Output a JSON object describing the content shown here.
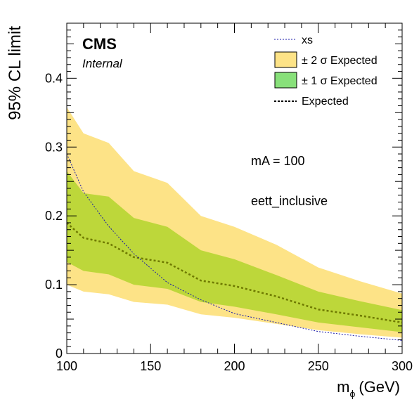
{
  "chart_data": {
    "type": "line",
    "ylabel": "95% CL limit",
    "xlabel_main": "m",
    "xlabel_sub": "ϕ",
    "xlabel_unit": "(GeV)",
    "xlim": [
      100,
      300
    ],
    "ylim": [
      0,
      0.48
    ],
    "x_ticks": [
      100,
      150,
      200,
      250,
      300
    ],
    "x_tick_labels": [
      "100",
      "150",
      "200",
      "250",
      "300"
    ],
    "y_ticks": [
      0,
      0.1,
      0.2,
      0.3,
      0.4
    ],
    "y_tick_labels": [
      "0",
      "0.1",
      "0.2",
      "0.3",
      "0.4"
    ],
    "label_cms": "CMS",
    "label_internal": "Internal",
    "annotation_mass": "mA = 100",
    "annotation_channel": "eett_inclusive",
    "legend": [
      {
        "label": "xs",
        "kind": "line-dashed-blue"
      },
      {
        "label": "± 2 σ Expected",
        "kind": "box-yellow"
      },
      {
        "label": "± 1 σ Expected",
        "kind": "box-green"
      },
      {
        "label": "Expected",
        "kind": "line-dotted-black"
      }
    ],
    "colors": {
      "band2": "#fde387",
      "band1": "#bdd73a",
      "legend_band1": "#88e07a",
      "expected": "#6f7a00",
      "xs": "#1a1aa8"
    },
    "x": [
      100,
      110,
      125,
      140,
      160,
      180,
      200,
      225,
      250,
      275,
      300
    ],
    "series": [
      {
        "name": "xs",
        "values": [
          0.29,
          0.235,
          0.185,
          0.145,
          0.103,
          0.078,
          0.058,
          0.045,
          0.032,
          0.025,
          0.019
        ]
      },
      {
        "name": "Expected",
        "values": [
          0.19,
          0.168,
          0.16,
          0.14,
          0.132,
          0.106,
          0.098,
          0.083,
          0.064,
          0.055,
          0.045
        ]
      },
      {
        "name": "+2σ",
        "values": [
          0.358,
          0.32,
          0.306,
          0.265,
          0.248,
          0.2,
          0.184,
          0.158,
          0.125,
          0.105,
          0.087
        ]
      },
      {
        "name": "+1σ",
        "values": [
          0.265,
          0.233,
          0.228,
          0.197,
          0.184,
          0.15,
          0.137,
          0.114,
          0.09,
          0.076,
          0.063
        ]
      },
      {
        "name": "-1σ",
        "values": [
          0.133,
          0.12,
          0.115,
          0.1,
          0.094,
          0.075,
          0.068,
          0.057,
          0.045,
          0.038,
          0.031
        ]
      },
      {
        "name": "-2σ",
        "values": [
          0.1,
          0.09,
          0.086,
          0.075,
          0.071,
          0.057,
          0.052,
          0.043,
          0.034,
          0.028,
          0.023
        ]
      }
    ]
  }
}
